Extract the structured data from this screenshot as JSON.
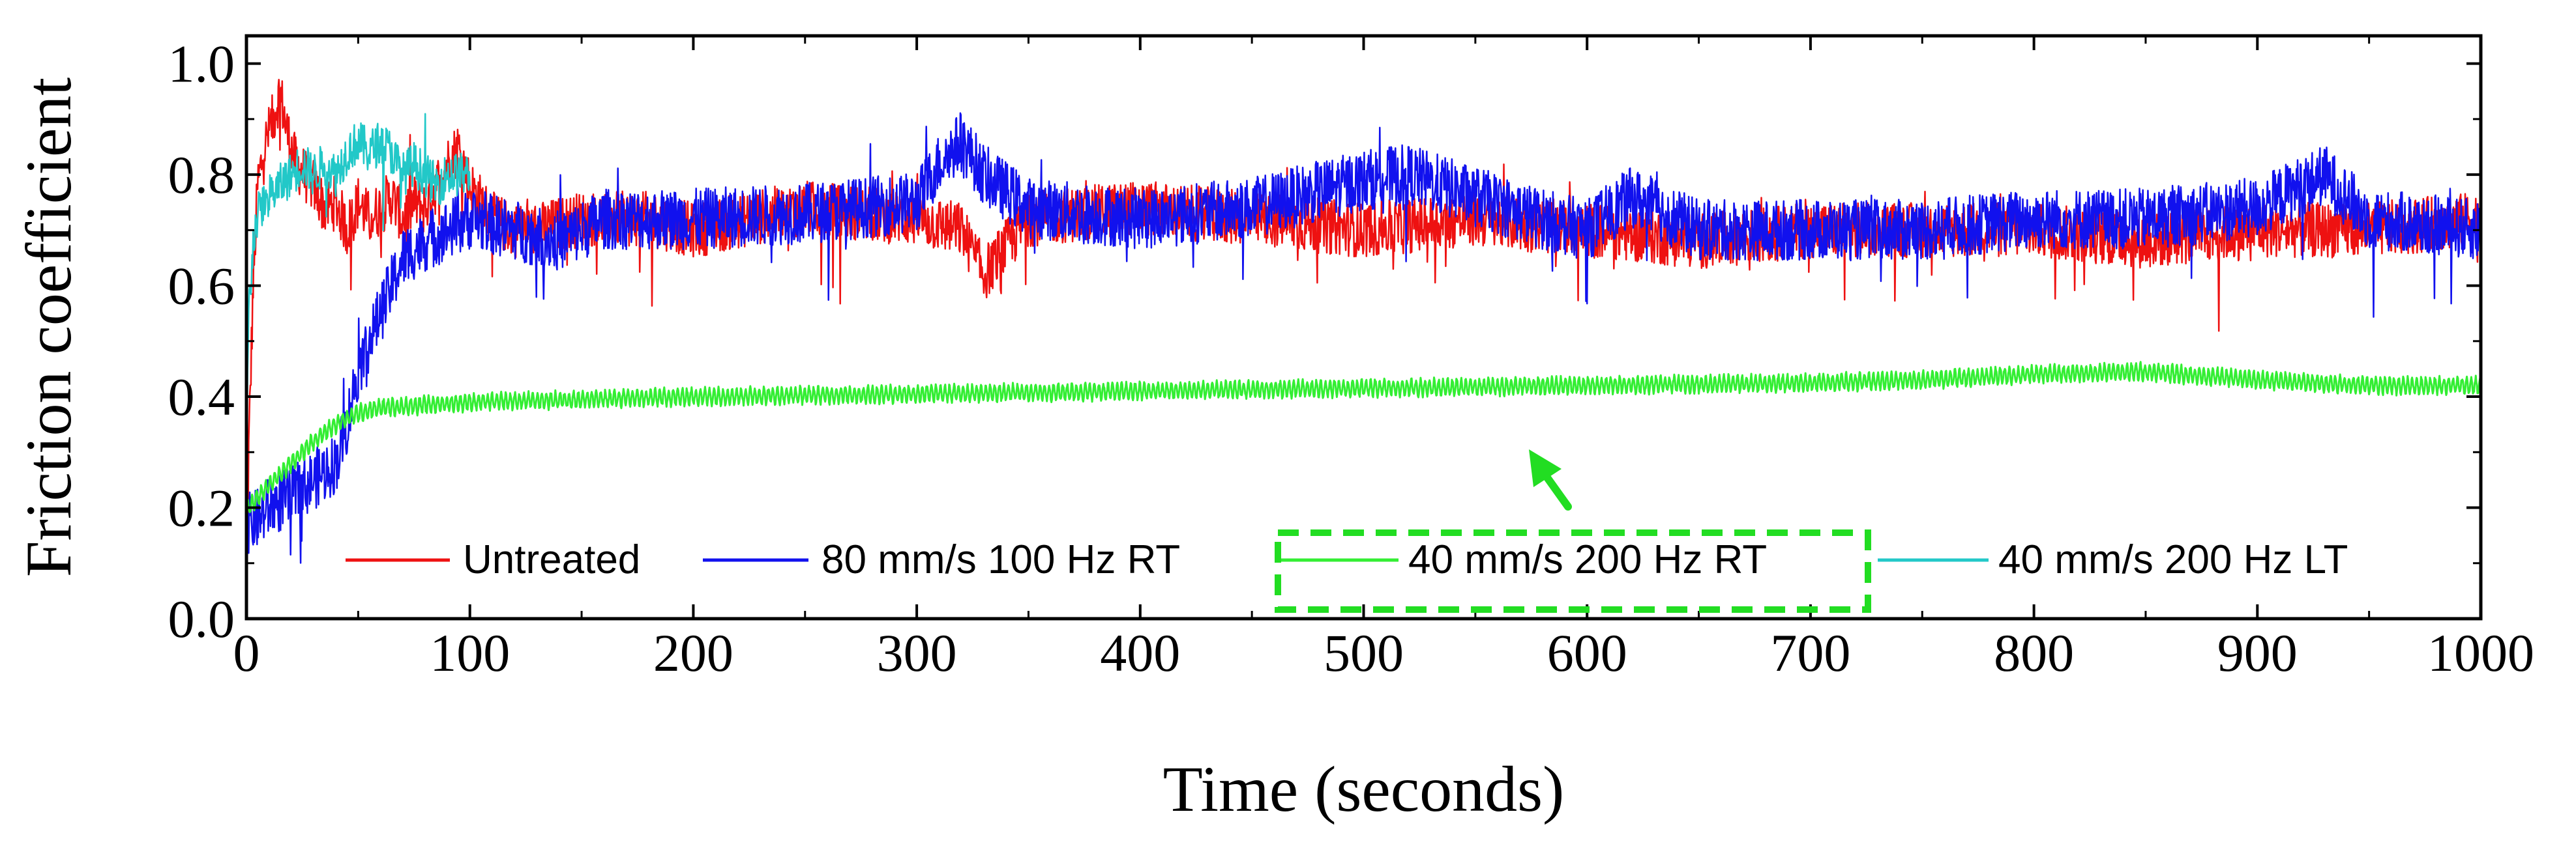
{
  "chart_data": {
    "type": "line",
    "title": "",
    "xlabel": "Time (seconds)",
    "ylabel": "Friction coefficient",
    "xlim": [
      0,
      1000
    ],
    "ylim": [
      0,
      1.05
    ],
    "x_ticks": [
      "0",
      "100",
      "200",
      "300",
      "400",
      "500",
      "600",
      "700",
      "800",
      "900",
      "1000"
    ],
    "y_ticks": [
      "0.0",
      "0.2",
      "0.4",
      "0.6",
      "0.8",
      "1.0"
    ],
    "grid": false,
    "legend_position": "bottom",
    "highlight": {
      "series": "40 mm/s 200 Hz RT",
      "style": "dashed box with arrow",
      "color": "#22dd22"
    },
    "series": [
      {
        "name": "Untreated",
        "color": "#ee1111",
        "x_end": 1000,
        "noise": 0.05,
        "x": [
          0,
          1,
          3,
          5,
          8,
          12,
          15,
          18,
          22,
          26,
          30,
          35,
          40,
          45,
          50,
          55,
          60,
          65,
          70,
          75,
          80,
          85,
          90,
          95,
          100,
          110,
          120,
          130,
          150,
          180,
          200,
          250,
          300,
          320,
          330,
          350,
          400,
          450,
          500,
          550,
          600,
          650,
          700,
          750,
          800,
          850,
          900,
          950,
          1000
        ],
        "y": [
          0.0,
          0.3,
          0.6,
          0.78,
          0.85,
          0.9,
          0.95,
          0.88,
          0.82,
          0.8,
          0.78,
          0.74,
          0.75,
          0.7,
          0.75,
          0.72,
          0.74,
          0.76,
          0.72,
          0.75,
          0.74,
          0.78,
          0.82,
          0.85,
          0.78,
          0.72,
          0.7,
          0.7,
          0.72,
          0.72,
          0.7,
          0.74,
          0.72,
          0.7,
          0.62,
          0.72,
          0.74,
          0.72,
          0.7,
          0.72,
          0.7,
          0.68,
          0.7,
          0.7,
          0.7,
          0.68,
          0.7,
          0.7,
          0.72
        ]
      },
      {
        "name": "80 mm/s 100 Hz RT",
        "color": "#1111ee",
        "x_end": 1000,
        "noise": 0.055,
        "x": [
          0,
          5,
          10,
          20,
          30,
          40,
          45,
          50,
          55,
          60,
          65,
          70,
          80,
          90,
          100,
          120,
          140,
          160,
          200,
          250,
          300,
          310,
          320,
          330,
          350,
          400,
          450,
          500,
          520,
          550,
          580,
          600,
          620,
          650,
          700,
          750,
          800,
          850,
          900,
          930,
          950,
          1000
        ],
        "y": [
          0.17,
          0.18,
          0.2,
          0.22,
          0.25,
          0.28,
          0.35,
          0.45,
          0.5,
          0.55,
          0.6,
          0.65,
          0.68,
          0.7,
          0.72,
          0.7,
          0.68,
          0.72,
          0.72,
          0.73,
          0.75,
          0.82,
          0.86,
          0.8,
          0.74,
          0.72,
          0.74,
          0.79,
          0.8,
          0.76,
          0.72,
          0.7,
          0.76,
          0.7,
          0.7,
          0.7,
          0.72,
          0.72,
          0.74,
          0.8,
          0.72,
          0.7
        ]
      },
      {
        "name": "40 mm/s 200 Hz RT",
        "color": "#33ee33",
        "x_end": 1000,
        "noise": 0.014,
        "x": [
          0,
          1,
          3,
          10,
          20,
          30,
          40,
          50,
          60,
          80,
          100,
          150,
          200,
          300,
          400,
          500,
          600,
          700,
          750,
          800,
          850,
          900,
          950,
          1000
        ],
        "y": [
          0.2,
          0.2,
          0.21,
          0.24,
          0.28,
          0.32,
          0.35,
          0.37,
          0.38,
          0.385,
          0.39,
          0.395,
          0.4,
          0.405,
          0.41,
          0.415,
          0.42,
          0.425,
          0.43,
          0.44,
          0.445,
          0.43,
          0.42,
          0.42
        ]
      },
      {
        "name": "40 mm/s 200 Hz LT",
        "color": "#22c8c8",
        "x_end": 100,
        "noise": 0.04,
        "x": [
          0,
          1,
          3,
          6,
          10,
          15,
          20,
          25,
          30,
          35,
          40,
          45,
          50,
          55,
          60,
          65,
          70,
          75,
          80,
          85,
          90,
          95,
          100
        ],
        "y": [
          0.3,
          0.55,
          0.68,
          0.74,
          0.76,
          0.78,
          0.8,
          0.82,
          0.8,
          0.82,
          0.8,
          0.84,
          0.86,
          0.84,
          0.86,
          0.84,
          0.8,
          0.82,
          0.8,
          0.78,
          0.8,
          0.8,
          0.8
        ]
      }
    ]
  }
}
